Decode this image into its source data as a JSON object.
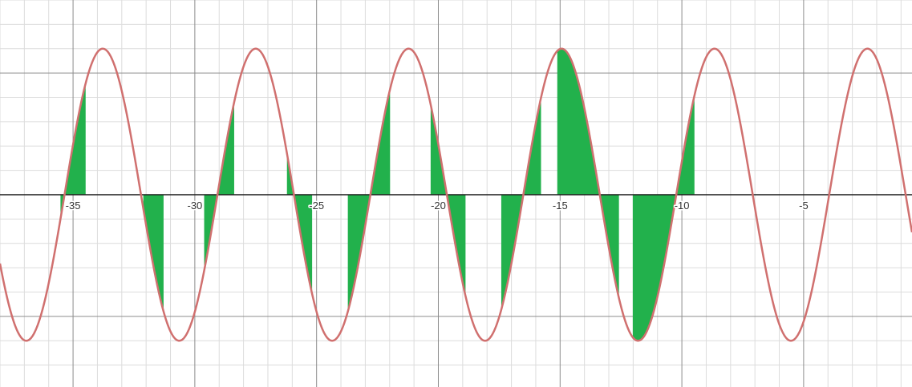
{
  "chart_data": {
    "type": "line",
    "title": "",
    "xlabel": "",
    "ylabel": "",
    "xlim": [
      -38,
      -0.55
    ],
    "ylim": [
      -7.9,
      8.0
    ],
    "grid": true,
    "x_ticks": [
      -35,
      -30,
      -25,
      -20,
      -15,
      -10,
      -5
    ],
    "x_tick_labels": [
      "-35",
      "-30",
      "-25",
      "-20",
      "-15",
      "-10",
      "-5"
    ],
    "series": [
      {
        "kind": "curve",
        "function": "sine",
        "amplitude": 6,
        "period": 6.28,
        "phase_zero_x": -35.35,
        "color": "#d0706f"
      }
    ],
    "shaded_regions": {
      "color": "#22b14c",
      "regions": [
        {
          "x_start": -35.5,
          "x_end": -34.5
        },
        {
          "x_start": -32.1,
          "x_end": -31.3
        },
        {
          "x_start": -29.6,
          "x_end": -28.4
        },
        {
          "x_start": -26.2,
          "x_end": -25.2
        },
        {
          "x_start": -23.7,
          "x_end": -22.0
        },
        {
          "x_start": -20.3,
          "x_end": -18.9
        },
        {
          "x_start": -17.4,
          "x_end": -15.8
        },
        {
          "x_start": -15.1,
          "x_end": -12.6
        },
        {
          "x_start": -12.0,
          "x_end": -9.5
        }
      ]
    }
  }
}
